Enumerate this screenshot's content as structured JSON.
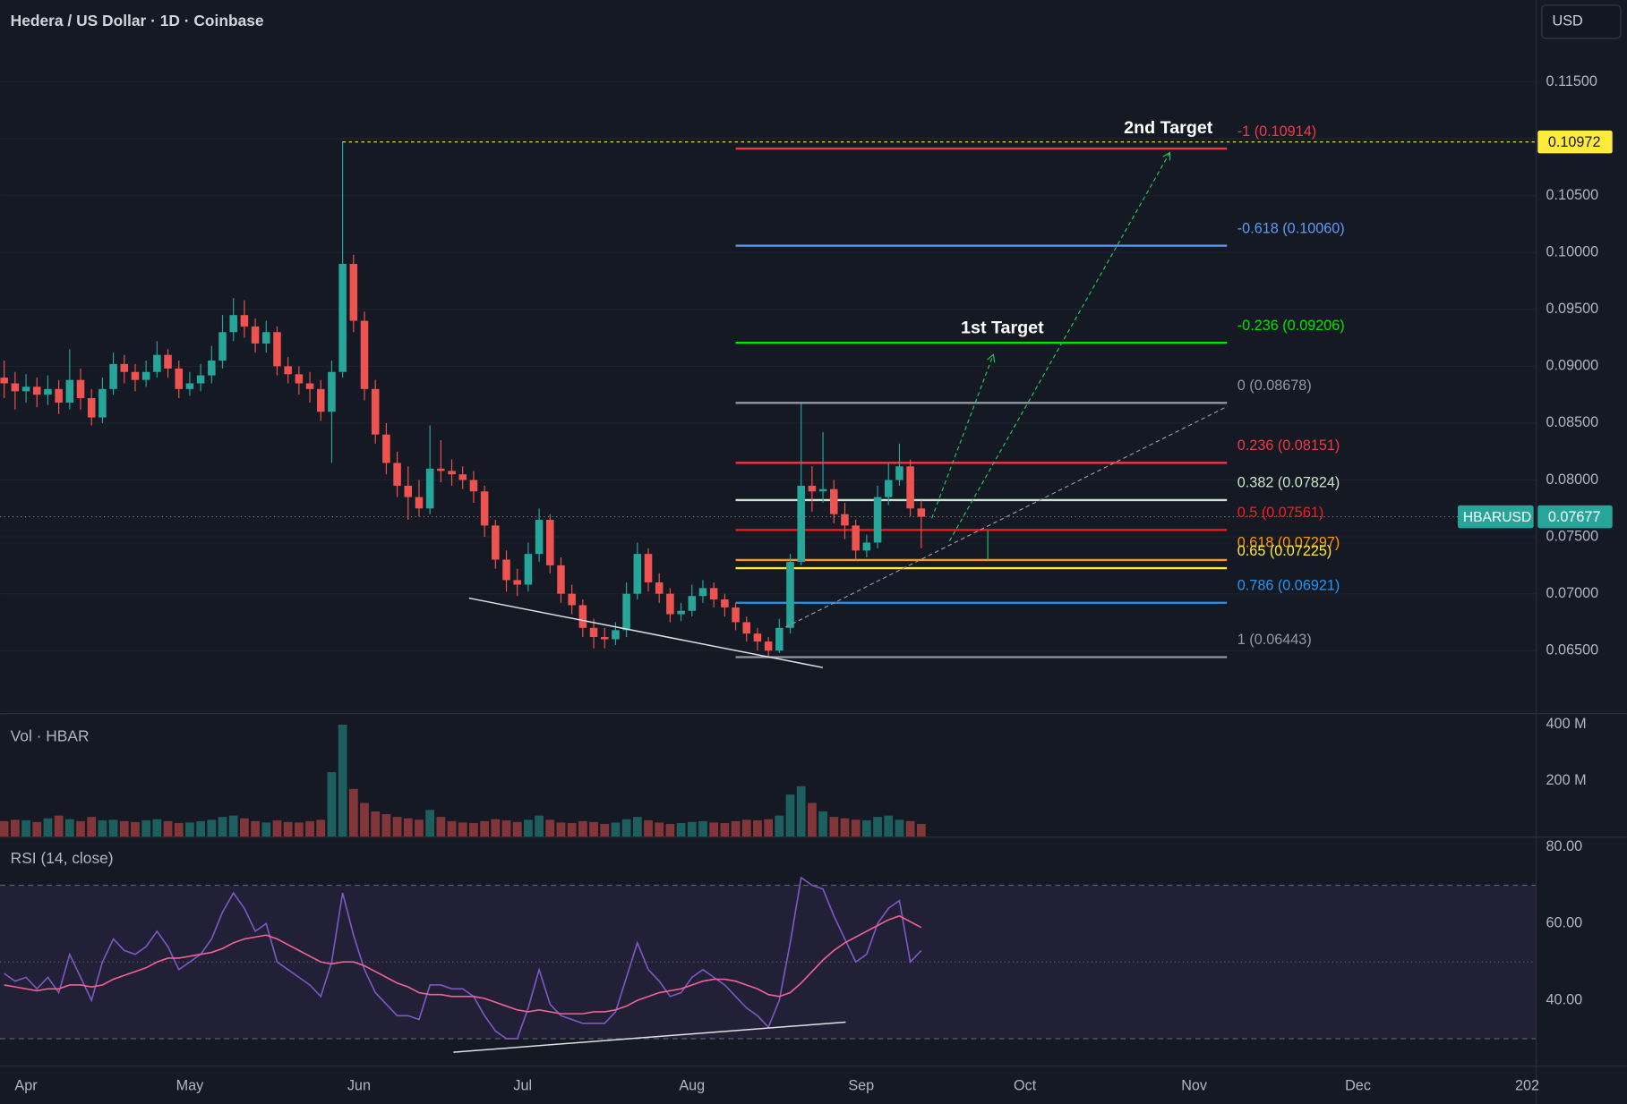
{
  "header": {
    "title": "Hedera / US Dollar · 1D · Coinbase",
    "currency": "USD"
  },
  "chart_data": [
    {
      "type": "candlestick",
      "symbol": "HBARUSD",
      "x": [
        -4,
        -2,
        0,
        2,
        4,
        6,
        8,
        10,
        12,
        14,
        16,
        18,
        20,
        22,
        24,
        26,
        28,
        30,
        32,
        34,
        36,
        38,
        40,
        42,
        44,
        46,
        48,
        50,
        52,
        54,
        56,
        58,
        60,
        62,
        64,
        66,
        68,
        70,
        72,
        74,
        76,
        78,
        80,
        82,
        84,
        86,
        88,
        90,
        92,
        94,
        96,
        98,
        100,
        102,
        104,
        106,
        108,
        110,
        112,
        114,
        116,
        118,
        120,
        122,
        124,
        126,
        128,
        130,
        132,
        134,
        136,
        138,
        140,
        142,
        144,
        146,
        148,
        150,
        152,
        154,
        156,
        158,
        160,
        162,
        164
      ],
      "open": [
        0.089,
        0.0885,
        0.0878,
        0.0882,
        0.0875,
        0.088,
        0.0868,
        0.0888,
        0.0872,
        0.0855,
        0.088,
        0.0902,
        0.0895,
        0.0888,
        0.0895,
        0.091,
        0.0898,
        0.088,
        0.0885,
        0.0892,
        0.0905,
        0.093,
        0.0945,
        0.0935,
        0.092,
        0.093,
        0.09,
        0.0893,
        0.0885,
        0.088,
        0.086,
        0.0895,
        0.099,
        0.094,
        0.088,
        0.084,
        0.0815,
        0.0795,
        0.0785,
        0.0775,
        0.081,
        0.0808,
        0.0805,
        0.08,
        0.079,
        0.076,
        0.073,
        0.0712,
        0.0708,
        0.0735,
        0.0765,
        0.0725,
        0.07,
        0.069,
        0.067,
        0.0662,
        0.066,
        0.0668,
        0.07,
        0.0735,
        0.071,
        0.07,
        0.0682,
        0.0685,
        0.0698,
        0.0705,
        0.0695,
        0.0688,
        0.0675,
        0.0665,
        0.0658,
        0.065,
        0.067,
        0.0728,
        0.0795,
        0.079,
        0.0792,
        0.077,
        0.076,
        0.0738,
        0.0745,
        0.0785,
        0.08,
        0.0812,
        0.0775
      ],
      "high": [
        0.0905,
        0.0895,
        0.0893,
        0.089,
        0.0892,
        0.0888,
        0.0915,
        0.0898,
        0.088,
        0.089,
        0.0912,
        0.091,
        0.0902,
        0.0905,
        0.0922,
        0.0915,
        0.0905,
        0.0895,
        0.0902,
        0.0918,
        0.0945,
        0.096,
        0.0958,
        0.0942,
        0.094,
        0.0935,
        0.0908,
        0.09,
        0.0895,
        0.0888,
        0.0905,
        0.10972,
        0.0998,
        0.0948,
        0.0888,
        0.085,
        0.0825,
        0.0812,
        0.08,
        0.0848,
        0.0835,
        0.0818,
        0.0812,
        0.0808,
        0.0795,
        0.0765,
        0.0738,
        0.0722,
        0.0745,
        0.0775,
        0.077,
        0.0732,
        0.0708,
        0.0695,
        0.0678,
        0.067,
        0.0675,
        0.071,
        0.0745,
        0.074,
        0.0718,
        0.0705,
        0.0692,
        0.0708,
        0.0712,
        0.071,
        0.07,
        0.0692,
        0.068,
        0.067,
        0.0662,
        0.0678,
        0.0735,
        0.0867,
        0.0812,
        0.0842,
        0.08,
        0.078,
        0.0765,
        0.0752,
        0.0795,
        0.0815,
        0.0832,
        0.0818,
        0.0782
      ],
      "low": [
        0.0872,
        0.0862,
        0.0868,
        0.0864,
        0.0866,
        0.0858,
        0.0862,
        0.0862,
        0.0848,
        0.085,
        0.0875,
        0.0885,
        0.0878,
        0.0882,
        0.089,
        0.089,
        0.0872,
        0.0874,
        0.0878,
        0.0885,
        0.0898,
        0.0922,
        0.0925,
        0.0912,
        0.0912,
        0.0892,
        0.0885,
        0.0875,
        0.0868,
        0.0852,
        0.0815,
        0.089,
        0.093,
        0.087,
        0.0832,
        0.0805,
        0.0785,
        0.0765,
        0.0768,
        0.077,
        0.0798,
        0.0795,
        0.0792,
        0.078,
        0.075,
        0.0722,
        0.0702,
        0.0698,
        0.0702,
        0.0728,
        0.0718,
        0.0692,
        0.0682,
        0.0662,
        0.0652,
        0.0652,
        0.0655,
        0.0662,
        0.0695,
        0.0702,
        0.0692,
        0.0675,
        0.0676,
        0.068,
        0.0692,
        0.0688,
        0.068,
        0.0668,
        0.0658,
        0.065,
        0.06443,
        0.0648,
        0.0665,
        0.0725,
        0.0772,
        0.078,
        0.0762,
        0.0748,
        0.073,
        0.0732,
        0.074,
        0.0778,
        0.0795,
        0.0768,
        0.074
      ],
      "close": [
        0.0885,
        0.0878,
        0.0882,
        0.0875,
        0.088,
        0.0868,
        0.0888,
        0.0872,
        0.0855,
        0.088,
        0.0902,
        0.0895,
        0.0888,
        0.0895,
        0.091,
        0.0898,
        0.088,
        0.0885,
        0.0892,
        0.0905,
        0.093,
        0.0945,
        0.0935,
        0.092,
        0.093,
        0.09,
        0.0893,
        0.0885,
        0.088,
        0.086,
        0.0895,
        0.099,
        0.094,
        0.088,
        0.084,
        0.0815,
        0.0795,
        0.0785,
        0.0775,
        0.081,
        0.0808,
        0.0805,
        0.08,
        0.079,
        0.076,
        0.073,
        0.0712,
        0.0708,
        0.0735,
        0.0765,
        0.0725,
        0.07,
        0.069,
        0.067,
        0.0662,
        0.066,
        0.0668,
        0.07,
        0.0735,
        0.071,
        0.07,
        0.0682,
        0.0685,
        0.0698,
        0.0705,
        0.0695,
        0.0688,
        0.0675,
        0.0665,
        0.0658,
        0.065,
        0.067,
        0.0728,
        0.0795,
        0.079,
        0.0792,
        0.077,
        0.076,
        0.0738,
        0.0745,
        0.0785,
        0.08,
        0.0812,
        0.0775,
        0.07677
      ],
      "up_color": "#26a69a",
      "down_color": "#ef5350",
      "xlim": [
        -4.75,
        276.55
      ],
      "ylim": [
        0.0595,
        0.1222
      ],
      "yticks": [
        {
          "value": 0.065,
          "label": "0.06500"
        },
        {
          "value": 0.07,
          "label": "0.07000"
        },
        {
          "value": 0.075,
          "label": "0.07500"
        },
        {
          "value": 0.08,
          "label": "0.08000"
        },
        {
          "value": 0.085,
          "label": "0.08500"
        },
        {
          "value": 0.09,
          "label": "0.09000"
        },
        {
          "value": 0.095,
          "label": "0.09500"
        },
        {
          "value": 0.1,
          "label": "0.10000"
        },
        {
          "value": 0.105,
          "label": "0.10500"
        },
        {
          "value": 0.11,
          "label": "0.11000"
        },
        {
          "value": 0.115,
          "label": "0.11500"
        }
      ],
      "grid": true,
      "fib_range": [
        130,
        220
      ],
      "fib_levels": [
        {
          "value": 0.10914,
          "label": "-1 (0.10914)",
          "color": "#f23645"
        },
        {
          "value": 0.1006,
          "label": "-0.618 (0.10060)",
          "color": "#5b9cf6"
        },
        {
          "value": 0.09206,
          "label": "-0.236 (0.09206)",
          "color": "#00e600"
        },
        {
          "value": 0.08678,
          "label": "0 (0.08678)",
          "color": "#9598a1"
        },
        {
          "value": 0.08151,
          "label": "0.236 (0.08151)",
          "color": "#f23645"
        },
        {
          "value": 0.07824,
          "label": "0.382 (0.07824)",
          "color": "#c8e6c9"
        },
        {
          "value": 0.07561,
          "label": "0.5 (0.07561)",
          "color": "#ff1a1a"
        },
        {
          "value": 0.07297,
          "label": "0.618 (0.07297)",
          "color": "#ff9800"
        },
        {
          "value": 0.07225,
          "label": "0.65 (0.07225)",
          "color": "#ffeb3b"
        },
        {
          "value": 0.06921,
          "label": "0.786 (0.06921)",
          "color": "#2196f3"
        },
        {
          "value": 0.06443,
          "label": "1 (0.06443)",
          "color": "#9598a1"
        }
      ],
      "annotations": [
        "2nd Target",
        "1st Target"
      ]
    },
    {
      "type": "bar",
      "title": "Vol · HBAR",
      "x": [
        -4,
        -2,
        0,
        2,
        4,
        6,
        8,
        10,
        12,
        14,
        16,
        18,
        20,
        22,
        24,
        26,
        28,
        30,
        32,
        34,
        36,
        38,
        40,
        42,
        44,
        46,
        48,
        50,
        52,
        54,
        56,
        58,
        60,
        62,
        64,
        66,
        68,
        70,
        72,
        74,
        76,
        78,
        80,
        82,
        84,
        86,
        88,
        90,
        92,
        94,
        96,
        98,
        100,
        102,
        104,
        106,
        108,
        110,
        112,
        114,
        116,
        118,
        120,
        122,
        124,
        126,
        128,
        130,
        132,
        134,
        136,
        138,
        140,
        142,
        144,
        146,
        148,
        150,
        152,
        154,
        156,
        158,
        160,
        162,
        164
      ],
      "values": [
        55,
        60,
        58,
        52,
        65,
        75,
        62,
        55,
        70,
        58,
        60,
        55,
        52,
        58,
        62,
        55,
        48,
        50,
        55,
        60,
        70,
        75,
        65,
        55,
        50,
        58,
        52,
        50,
        55,
        60,
        230,
        400,
        170,
        120,
        90,
        80,
        70,
        65,
        60,
        95,
        70,
        55,
        50,
        48,
        55,
        62,
        58,
        52,
        60,
        75,
        60,
        50,
        48,
        55,
        52,
        45,
        50,
        62,
        70,
        58,
        50,
        45,
        48,
        52,
        55,
        50,
        48,
        55,
        60,
        58,
        62,
        75,
        150,
        180,
        120,
        90,
        70,
        65,
        60,
        58,
        70,
        75,
        60,
        55,
        45
      ],
      "xlim": [
        -4.75,
        276.55
      ],
      "ylim": [
        0,
        437
      ],
      "yticks": [
        {
          "value": 200,
          "label": "200 M"
        },
        {
          "value": 400,
          "label": "400 M"
        }
      ]
    },
    {
      "type": "line",
      "title": "RSI (14, close)",
      "x": [
        -4,
        -2,
        0,
        2,
        4,
        6,
        8,
        10,
        12,
        14,
        16,
        18,
        20,
        22,
        24,
        26,
        28,
        30,
        32,
        34,
        36,
        38,
        40,
        42,
        44,
        46,
        48,
        50,
        52,
        54,
        56,
        58,
        60,
        62,
        64,
        66,
        68,
        70,
        72,
        74,
        76,
        78,
        80,
        82,
        84,
        86,
        88,
        90,
        92,
        94,
        96,
        98,
        100,
        102,
        104,
        106,
        108,
        110,
        112,
        114,
        116,
        118,
        120,
        122,
        124,
        126,
        128,
        130,
        132,
        134,
        136,
        138,
        140,
        142,
        144,
        146,
        148,
        150,
        152,
        154,
        156,
        158,
        160,
        162,
        164
      ],
      "series": [
        {
          "color": "#7e57c2",
          "values": [
            47,
            45,
            46,
            43,
            46,
            42,
            52,
            46,
            40,
            50,
            56,
            53,
            52,
            54,
            58,
            54,
            48,
            50,
            52,
            56,
            63,
            68,
            64,
            58,
            60,
            50,
            48,
            46,
            44,
            41,
            50,
            68,
            57,
            48,
            42,
            39,
            36,
            36,
            35,
            44,
            44,
            43,
            43,
            41,
            36,
            32,
            30,
            30,
            38,
            48,
            39,
            36,
            35,
            34,
            34,
            34,
            37,
            46,
            55,
            48,
            45,
            41,
            42,
            46,
            48,
            46,
            44,
            41,
            38,
            36,
            33,
            40,
            55,
            72,
            70,
            69,
            62,
            56,
            50,
            52,
            60,
            64,
            66,
            50,
            53
          ]
        },
        {
          "color": "#f06292",
          "values": [
            44,
            43.5,
            43,
            42.5,
            43,
            43,
            44,
            44,
            43.5,
            44,
            45.5,
            46.5,
            47.5,
            48.5,
            50,
            51,
            51,
            51.5,
            52,
            52.5,
            53.5,
            55,
            56,
            56.5,
            57,
            56,
            54.5,
            53,
            51.5,
            50,
            49.5,
            50,
            50,
            49,
            47.5,
            46,
            44.5,
            43.5,
            42,
            41.5,
            41.5,
            41,
            41,
            41,
            40.5,
            39.5,
            38.5,
            37.5,
            37,
            37.5,
            37,
            36.5,
            36.5,
            36.5,
            37,
            37,
            37.5,
            38.5,
            40,
            41,
            42,
            42.5,
            43,
            44,
            45,
            45.5,
            45.5,
            45,
            44,
            43,
            41.5,
            41,
            42,
            44.5,
            47.5,
            50.5,
            53,
            55,
            56.5,
            58,
            59.5,
            61,
            62,
            60.5,
            59
          ]
        }
      ],
      "bands": [
        30,
        50,
        70
      ],
      "xlim": [
        -4.75,
        276.55
      ],
      "ylim": [
        22.97,
        82.43
      ],
      "yticks": [
        {
          "value": 40,
          "label": "40.00"
        },
        {
          "value": 60,
          "label": "60.00"
        },
        {
          "value": 80,
          "label": "80.00"
        }
      ],
      "xticks": [
        {
          "value": 0,
          "label": "Apr"
        },
        {
          "value": 30,
          "label": "May"
        },
        {
          "value": 61,
          "label": "Jun"
        },
        {
          "value": 91,
          "label": "Jul"
        },
        {
          "value": 122,
          "label": "Aug"
        },
        {
          "value": 153,
          "label": "Sep"
        },
        {
          "value": 183,
          "label": "Oct"
        },
        {
          "value": 214,
          "label": "Nov"
        },
        {
          "value": 244,
          "label": "Dec"
        },
        {
          "value": 275,
          "label": "202"
        }
      ]
    }
  ]
}
